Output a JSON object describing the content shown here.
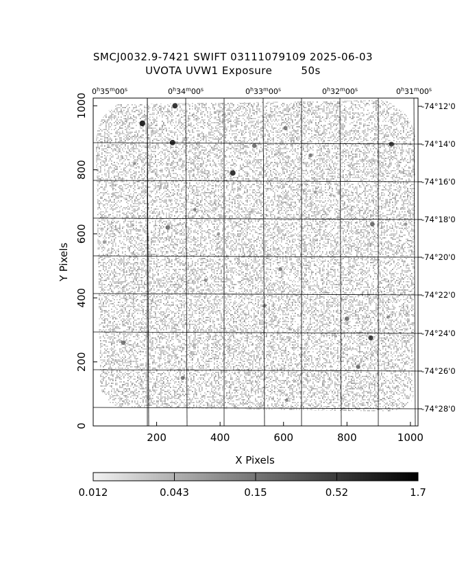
{
  "header": {
    "title_line1": "SMCJ0032.9-7421 SWIFT 03111079109 2025-06-03",
    "title_line2": "UVOTA UVW1 Exposure        50s"
  },
  "axes": {
    "xlabel": "X Pixels",
    "ylabel": "Y Pixels",
    "x_ticks": [
      "200",
      "400",
      "600",
      "800",
      "1000"
    ],
    "y_ticks": [
      "0",
      "200",
      "400",
      "600",
      "800",
      "1000"
    ],
    "x_range": [
      0,
      1024
    ],
    "y_range": [
      0,
      1024
    ]
  },
  "ra_labels": [
    {
      "h": "0",
      "m": "35",
      "s": "00"
    },
    {
      "h": "0",
      "m": "34",
      "s": "00"
    },
    {
      "h": "0",
      "m": "33",
      "s": "00"
    },
    {
      "h": "0",
      "m": "32",
      "s": "00"
    },
    {
      "h": "0",
      "m": "31",
      "s": "00"
    }
  ],
  "dec_labels": [
    "-74°12'0",
    "-74°14'0",
    "-74°16'0",
    "-74°18'0",
    "-74°20'0",
    "-74°22'0",
    "-74°24'0",
    "-74°26'0",
    "-74°28'0"
  ],
  "colorbar": {
    "ticks": [
      "0.012",
      "0.043",
      "0.15",
      "0.52",
      "1.7"
    ],
    "colors": [
      "#f2f2f2",
      "#bdbdbd",
      "#8c8c8c",
      "#5e5e5e",
      "#2e2e2e",
      "#000000"
    ]
  },
  "image": {
    "background": "#ffffff",
    "field_color": "#a0a0a0",
    "sources": [
      {
        "x": 155,
        "y": 945,
        "b": 0.9
      },
      {
        "x": 258,
        "y": 1000,
        "b": 0.8
      },
      {
        "x": 250,
        "y": 885,
        "b": 0.85
      },
      {
        "x": 440,
        "y": 790,
        "b": 0.85
      },
      {
        "x": 508,
        "y": 875,
        "b": 0.6
      },
      {
        "x": 606,
        "y": 930,
        "b": 0.5
      },
      {
        "x": 685,
        "y": 845,
        "b": 0.45
      },
      {
        "x": 940,
        "y": 880,
        "b": 0.7
      },
      {
        "x": 880,
        "y": 630,
        "b": 0.6
      },
      {
        "x": 235,
        "y": 620,
        "b": 0.6
      },
      {
        "x": 590,
        "y": 490,
        "b": 0.45
      },
      {
        "x": 800,
        "y": 335,
        "b": 0.6
      },
      {
        "x": 875,
        "y": 275,
        "b": 0.7
      },
      {
        "x": 835,
        "y": 185,
        "b": 0.55
      },
      {
        "x": 95,
        "y": 260,
        "b": 0.6
      },
      {
        "x": 282,
        "y": 150,
        "b": 0.5
      },
      {
        "x": 540,
        "y": 375,
        "b": 0.4
      },
      {
        "x": 355,
        "y": 455,
        "b": 0.35
      },
      {
        "x": 610,
        "y": 80,
        "b": 0.35
      },
      {
        "x": 930,
        "y": 340,
        "b": 0.35
      },
      {
        "x": 320,
        "y": 675,
        "b": 0.3
      },
      {
        "x": 130,
        "y": 820,
        "b": 0.3
      },
      {
        "x": 985,
        "y": 630,
        "b": 0.35
      },
      {
        "x": 35,
        "y": 575,
        "b": 0.3
      },
      {
        "x": 700,
        "y": 730,
        "b": 0.3
      },
      {
        "x": 395,
        "y": 600,
        "b": 0.3
      }
    ]
  }
}
